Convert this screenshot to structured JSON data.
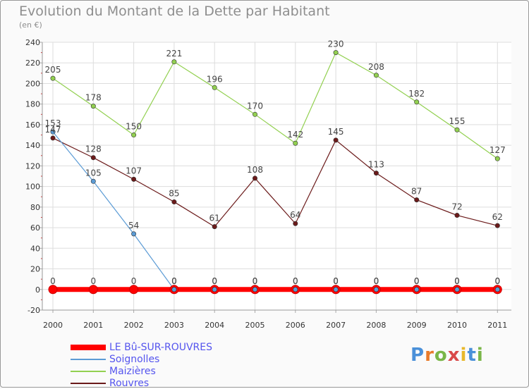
{
  "chart_data": {
    "type": "line",
    "title": "Evolution du Montant de la Dette par Habitant",
    "subtitle": "(en €)",
    "categories": [
      "2000",
      "2001",
      "2002",
      "2003",
      "2004",
      "2005",
      "2006",
      "2007",
      "2008",
      "2009",
      "2010",
      "2011"
    ],
    "ylim": [
      -20,
      240
    ],
    "yticks": [
      -20,
      0,
      20,
      40,
      60,
      80,
      100,
      120,
      140,
      160,
      180,
      200,
      220,
      240
    ],
    "grid": true,
    "legend_position": "bottom-left",
    "series": [
      {
        "name": "LE Bû-SUR-ROUVRES",
        "color": "#ff0000",
        "values": [
          0,
          0,
          0,
          0,
          0,
          0,
          0,
          0,
          0,
          0,
          0,
          0
        ]
      },
      {
        "name": "Soignolles",
        "color": "#5b9bd5",
        "values": [
          153,
          105,
          54,
          0,
          0,
          0,
          0,
          0,
          0,
          0,
          0,
          0
        ]
      },
      {
        "name": "Maizières",
        "color": "#92d050",
        "values": [
          205,
          178,
          150,
          221,
          196,
          170,
          142,
          230,
          208,
          182,
          155,
          127
        ]
      },
      {
        "name": "Rouvres",
        "color": "#6b1a1a",
        "values": [
          147,
          128,
          107,
          85,
          61,
          108,
          64,
          145,
          113,
          87,
          72,
          62
        ]
      }
    ]
  },
  "logo": {
    "text": "Proxiti"
  }
}
